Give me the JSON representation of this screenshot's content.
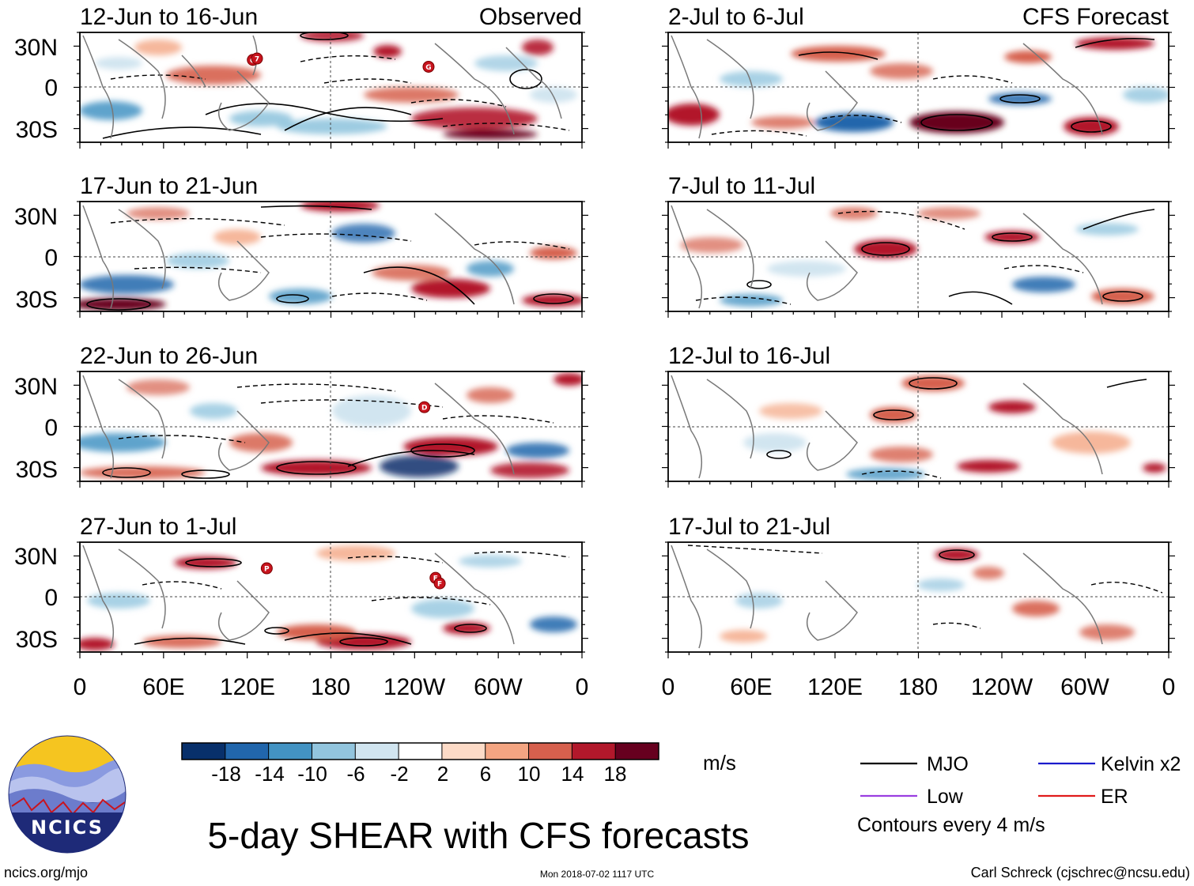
{
  "figure_title": "5-day SHEAR with CFS forecasts",
  "observed_label": "Observed",
  "forecast_label": "CFS Forecast",
  "panels": [
    {
      "title": "12-Jun to 16-Jun",
      "column": "observed",
      "storms": [
        {
          "label": "G",
          "lon": 124,
          "lat": 20
        },
        {
          "label": "7",
          "lon": 127,
          "lat": 21
        },
        {
          "label": "G",
          "lon": 250,
          "lat": 15
        }
      ]
    },
    {
      "title": "17-Jun to 21-Jun",
      "column": "observed",
      "storms": []
    },
    {
      "title": "22-Jun to 26-Jun",
      "column": "observed",
      "storms": [
        {
          "label": "D",
          "lon": 247,
          "lat": 14
        }
      ]
    },
    {
      "title": "27-Jun to 1-Jul",
      "column": "observed",
      "storms": [
        {
          "label": "P",
          "lon": 134,
          "lat": 21
        },
        {
          "label": "E",
          "lon": 255,
          "lat": 14
        },
        {
          "label": "F",
          "lon": 258,
          "lat": 10
        }
      ]
    },
    {
      "title": "2-Jul to 6-Jul",
      "column": "forecast",
      "storms": []
    },
    {
      "title": "7-Jul to 11-Jul",
      "column": "forecast",
      "storms": []
    },
    {
      "title": "12-Jul to 16-Jul",
      "column": "forecast",
      "storms": []
    },
    {
      "title": "17-Jul to 21-Jul",
      "column": "forecast",
      "storms": []
    }
  ],
  "lat_labels": [
    "30N",
    "0",
    "30S"
  ],
  "lon_labels": [
    "0",
    "60E",
    "120E",
    "180",
    "120W",
    "60W",
    "0"
  ],
  "colorbar": {
    "unit": "m/s",
    "tick_labels": [
      "-18",
      "-14",
      "-10",
      "-6",
      "-2",
      "2",
      "6",
      "10",
      "14",
      "18"
    ],
    "colors": [
      "#08306b",
      "#2166ac",
      "#4393c3",
      "#92c5de",
      "#d1e5f0",
      "#ffffff",
      "#fddbc7",
      "#f4a582",
      "#d6604d",
      "#b2182b",
      "#67001f"
    ]
  },
  "legend": {
    "items": [
      {
        "label": "MJO",
        "color": "#000000"
      },
      {
        "label": "Kelvin x2",
        "color": "#1a1acc"
      },
      {
        "label": "Low",
        "color": "#9a3ee0"
      },
      {
        "label": "ER",
        "color": "#e01a1a"
      }
    ],
    "contour_note": "Contours every 4 m/s"
  },
  "logo_text": "NCICS",
  "footer": {
    "website": "ncics.org/mjo",
    "timestamp": "Mon 2018-07-02 1117 UTC",
    "credit": "Carl Schreck (cjschrec@ncsu.edu)"
  },
  "palette": {
    "storm": "#c8141e",
    "land_outline": "#787878",
    "dashed_ref": "#555555"
  }
}
